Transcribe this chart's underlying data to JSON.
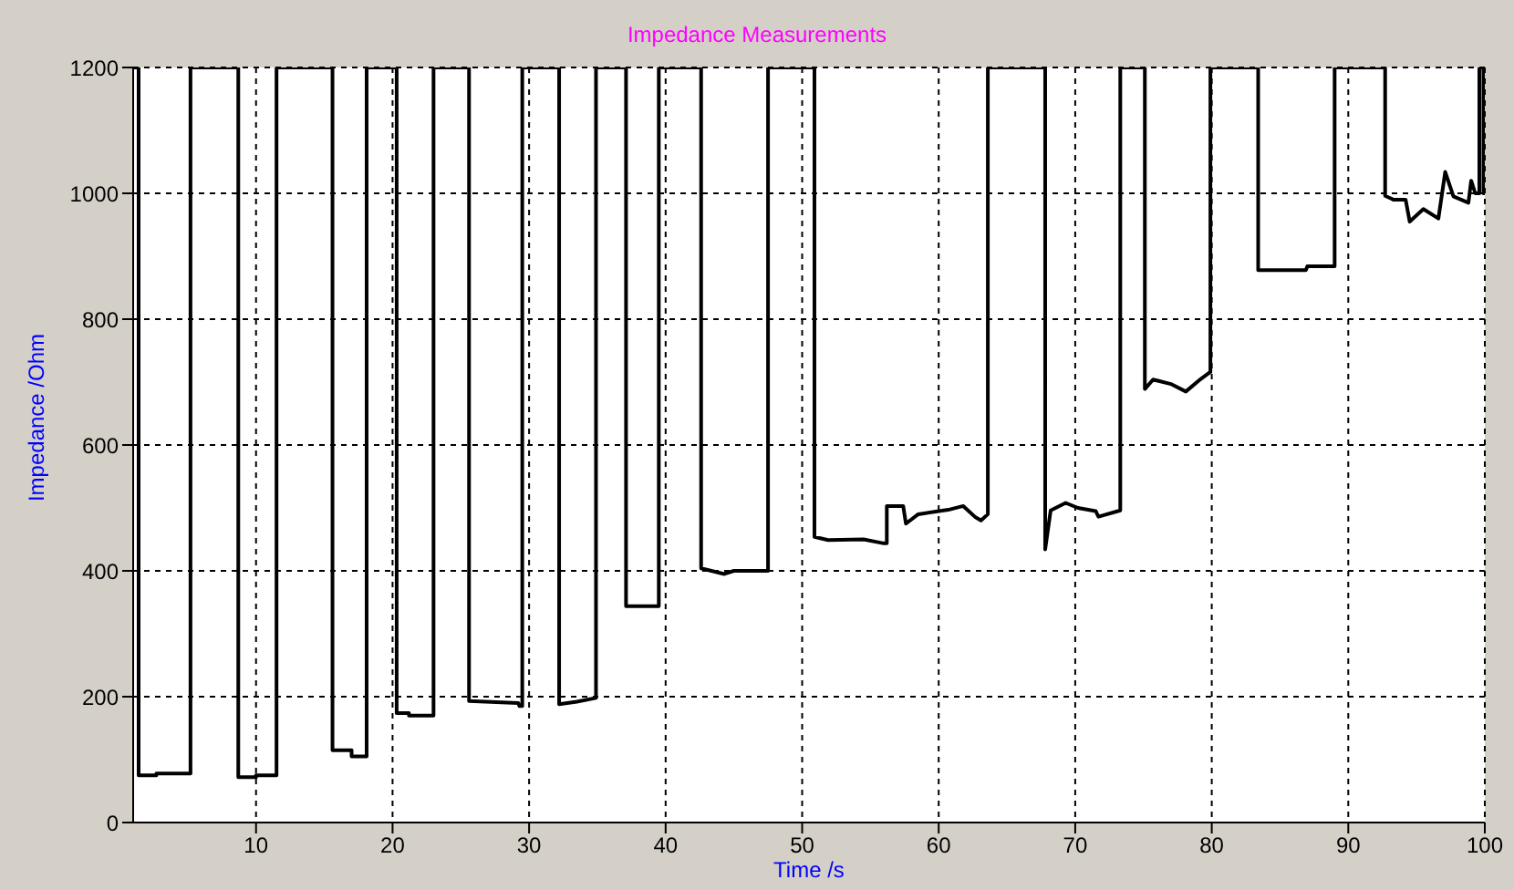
{
  "chart_data": {
    "type": "line",
    "title": "Impedance Measurements",
    "xlabel": "Time /s",
    "ylabel": "Impedance /Ohm",
    "x": [
      1,
      1.4,
      1.4,
      2.7,
      2.7,
      5.2,
      5.2,
      8.7,
      8.7,
      10,
      10,
      11.5,
      11.5,
      15.6,
      15.6,
      17,
      17,
      18.1,
      18.1,
      20.3,
      20.3,
      21.2,
      21.2,
      23,
      23,
      25.6,
      25.6,
      29.2,
      29.3,
      29.5,
      29.5,
      32.2,
      32.2,
      33.5,
      34.9,
      34.9,
      37.1,
      37.1,
      39.5,
      39.5,
      42.6,
      42.6,
      44.3,
      45,
      47.5,
      47.5,
      50.9,
      50.9,
      51.9,
      54.5,
      55.9,
      56.2,
      56.2,
      57.4,
      57.6,
      58.5,
      60.7,
      61.8,
      62.7,
      63.1,
      63.6,
      63.6,
      67.8,
      67.8,
      68.2,
      69.3,
      70.2,
      71.5,
      71.7,
      73.3,
      73.3,
      75.1,
      75.1,
      75.7,
      77,
      78.1,
      79.2,
      79.9,
      79.9,
      83.4,
      83.4,
      86.9,
      87,
      89,
      89,
      92.7,
      92.7,
      93.3,
      94.2,
      94.5,
      95.5,
      96.6,
      97.1,
      97.7,
      98.8,
      99,
      99.3,
      99.6,
      99.6,
      99.9,
      99.9,
      100
    ],
    "series": [
      {
        "color": "#000000",
        "values": [
          1200,
          1200,
          75,
          75,
          78,
          78,
          1200,
          1200,
          72,
          72,
          75,
          75,
          1200,
          1200,
          115,
          115,
          105,
          105,
          1200,
          1200,
          174,
          174,
          170,
          170,
          1200,
          1200,
          193,
          190,
          185,
          185,
          1200,
          1200,
          188,
          192,
          198,
          1200,
          1200,
          344,
          344,
          1200,
          1200,
          404,
          395,
          400,
          400,
          1200,
          1200,
          454,
          449,
          450,
          444,
          444,
          503,
          503,
          475,
          490,
          497,
          503,
          485,
          480,
          490,
          1200,
          1200,
          434,
          496,
          508,
          500,
          495,
          486,
          496,
          1200,
          1200,
          689,
          704,
          697,
          685,
          705,
          716,
          1200,
          1200,
          878,
          878,
          884,
          884,
          1200,
          1200,
          996,
          990,
          990,
          955,
          975,
          960,
          1034,
          995,
          985,
          1020,
          1000,
          1000,
          1200,
          1200,
          1000,
          1000
        ]
      }
    ],
    "xlim": [
      1,
      100
    ],
    "xticks": [
      10,
      20,
      30,
      40,
      50,
      60,
      70,
      80,
      90,
      100
    ],
    "ylim": [
      0,
      1200
    ],
    "yticks": [
      0,
      200,
      400,
      600,
      800,
      1000,
      1200
    ],
    "grid": true,
    "legend": false,
    "marker": "none",
    "line_style": "solid"
  }
}
